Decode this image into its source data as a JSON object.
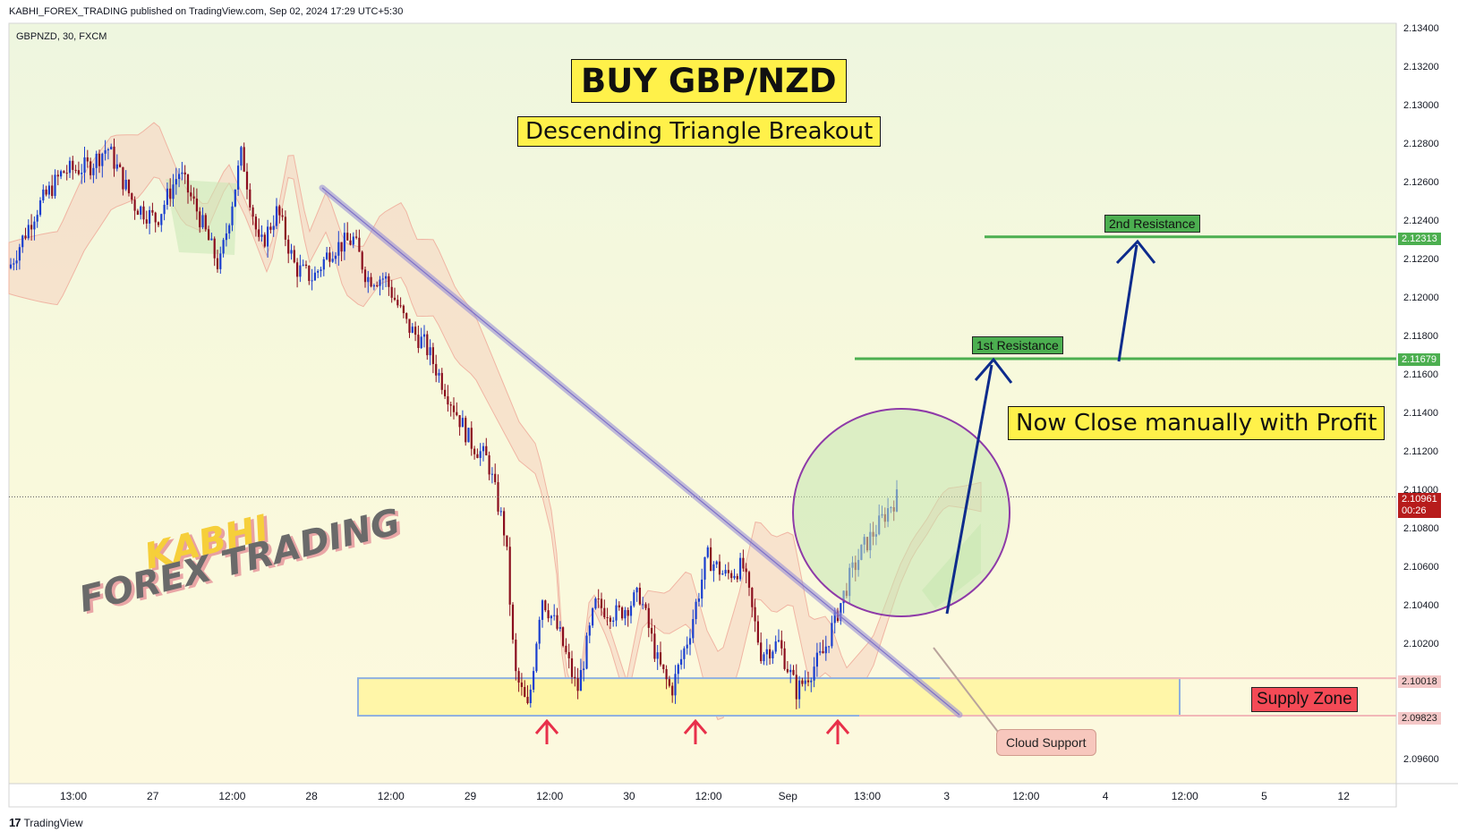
{
  "header": {
    "publisher": "KABHI_FOREX_TRADING published on TradingView.com, Sep 02, 2024 17:29 UTC+5:30",
    "symbol_line": "GBPNZD, 30, FXCM"
  },
  "footer": {
    "logo_text": "TradingView"
  },
  "annotations": {
    "title": "BUY GBP/NZD",
    "subtitle": "Descending Triangle Breakout",
    "note": "Now Close manually with Profit",
    "res1": "1st Resistance",
    "res2": "2nd Resistance",
    "supply": "Supply Zone",
    "cloud": "Cloud Support",
    "watermark_top": "KABHI",
    "watermark_bottom": "FOREX TRADING"
  },
  "price_tags": {
    "res2": "2.12313",
    "res1": "2.11679",
    "current": "2.10961",
    "countdown": "00:26",
    "supply_top": "2.10018",
    "supply_bottom": "2.09823"
  },
  "colors": {
    "bull": "#1a3fcf",
    "bear": "#8b0e1e",
    "resistance": "#4caf50",
    "trendline": "#9a8fd6",
    "cloud": "#f5d2bf",
    "cloud_bull": "#c9e7b4",
    "circle": "#8e3aa8",
    "arrow": "#0d2b8c",
    "up_arrow": "#e8304a",
    "supply_fill": "#fff6a8",
    "supply_border": "#8fb0e0"
  },
  "chart_data": {
    "type": "candlestick",
    "title": "BUY GBP/NZD",
    "symbol": "GBPNZD",
    "timeframe": "30",
    "y_ticks": [
      2.134,
      2.132,
      2.13,
      2.128,
      2.126,
      2.124,
      2.122,
      2.12,
      2.118,
      2.116,
      2.114,
      2.112,
      2.11,
      2.108,
      2.106,
      2.104,
      2.102,
      2.1,
      2.098,
      2.096
    ],
    "ylim": [
      2.095,
      2.135
    ],
    "x_ticks": [
      "13:00",
      "27",
      "12:00",
      "28",
      "12:00",
      "29",
      "12:00",
      "30",
      "12:00",
      "Sep",
      "13:00",
      "3",
      "12:00",
      "4",
      "12:00",
      "5",
      "12"
    ],
    "levels": {
      "res1": 2.11679,
      "res2": 2.12313,
      "current": 2.10961,
      "supply_top": 2.10018,
      "supply_bottom": 2.09823
    },
    "price_path": [
      [
        10,
        2.1215
      ],
      [
        40,
        2.1245
      ],
      [
        70,
        2.1265
      ],
      [
        100,
        2.1268
      ],
      [
        120,
        2.1278
      ],
      [
        150,
        2.1248
      ],
      [
        175,
        2.124
      ],
      [
        200,
        2.1265
      ],
      [
        220,
        2.1245
      ],
      [
        245,
        2.1215
      ],
      [
        270,
        2.1275
      ],
      [
        290,
        2.1225
      ],
      [
        310,
        2.1245
      ],
      [
        330,
        2.1215
      ],
      [
        350,
        2.121
      ],
      [
        370,
        2.1225
      ],
      [
        395,
        2.123
      ],
      [
        410,
        2.121
      ],
      [
        430,
        2.121
      ],
      [
        455,
        2.1185
      ],
      [
        475,
        2.1175
      ],
      [
        500,
        2.115
      ],
      [
        525,
        2.1125
      ],
      [
        545,
        2.1115
      ],
      [
        565,
        2.1075
      ],
      [
        575,
        2.1005
      ],
      [
        590,
        2.0985
      ],
      [
        605,
        2.1045
      ],
      [
        625,
        2.1025
      ],
      [
        645,
        2.0995
      ],
      [
        665,
        2.104
      ],
      [
        690,
        2.1035
      ],
      [
        715,
        2.1045
      ],
      [
        735,
        2.101
      ],
      [
        750,
        2.0995
      ],
      [
        770,
        2.1025
      ],
      [
        790,
        2.1065
      ],
      [
        810,
        2.1055
      ],
      [
        830,
        2.106
      ],
      [
        850,
        2.1015
      ],
      [
        870,
        2.102
      ],
      [
        890,
        2.0995
      ],
      [
        905,
        2.1005
      ],
      [
        920,
        2.1015
      ],
      [
        935,
        2.1035
      ],
      [
        950,
        2.1055
      ],
      [
        965,
        2.107
      ],
      [
        980,
        2.108
      ],
      [
        995,
        2.1092
      ],
      [
        1003,
        2.1096
      ]
    ]
  }
}
